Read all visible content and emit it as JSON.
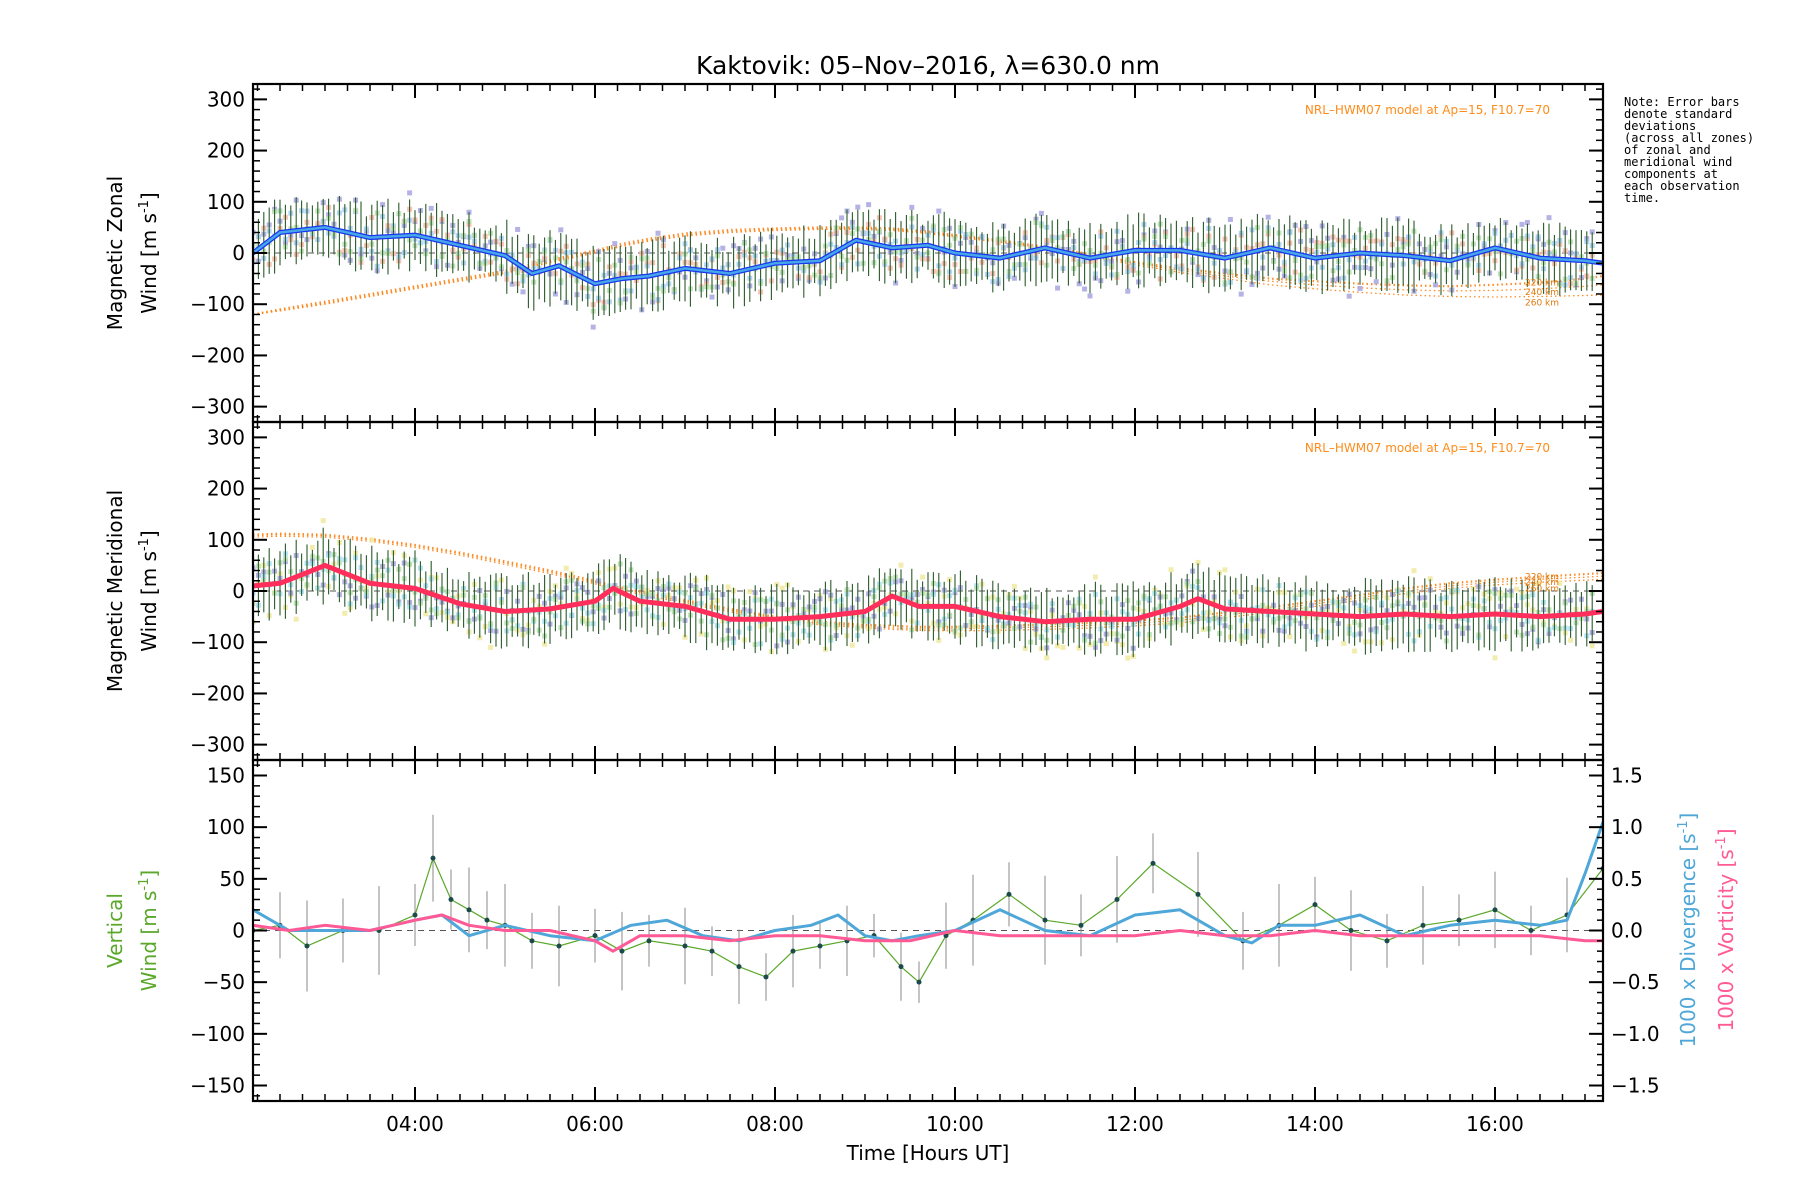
{
  "title": "Kaktovik: 05–Nov–2016, λ=630.0 nm",
  "note_lines": [
    "Note: Error bars",
    "denote standard",
    "deviations",
    "(across all zones)",
    "of zonal and",
    "meridional wind",
    "components at",
    "each observation",
    "time."
  ],
  "x_axis": {
    "label": "Time [Hours UT]",
    "range_hours": [
      2.2,
      17.2
    ],
    "ticks": [
      {
        "v": 4,
        "t": "04:00"
      },
      {
        "v": 6,
        "t": "06:00"
      },
      {
        "v": 8,
        "t": "08:00"
      },
      {
        "v": 10,
        "t": "10:00"
      },
      {
        "v": 12,
        "t": "12:00"
      },
      {
        "v": 14,
        "t": "14:00"
      },
      {
        "v": 16,
        "t": "16:00"
      }
    ]
  },
  "colors": {
    "zonal_mean": "#1a35f0",
    "zonal_avg": "#4ab4e6",
    "meridional_mean": "#ff2e5a",
    "model": "#ff7f0e",
    "vertical": "#5aa82a",
    "divergence": "#4ea7d8",
    "vorticity": "#ff5a96",
    "zonal_points": [
      "#a8a6e0",
      "#f8b8a8",
      "#a8d0f5",
      "#b8e0b0"
    ],
    "meridional_points": [
      "#f0eaa0",
      "#a8a6e0",
      "#a8e0f0",
      "#b8e0b0"
    ]
  },
  "panels": {
    "zonal": {
      "ylabel_line1": "Magnetic Zonal",
      "ylabel_line2": "Wind [m s",
      "ylabel_sup": "-1",
      "ylabel_close": "]",
      "ylim": [
        -330,
        330
      ],
      "yticks": [
        {
          "v": 300,
          "t": "300"
        },
        {
          "v": 200,
          "t": "200"
        },
        {
          "v": 100,
          "t": "100"
        },
        {
          "v": 0,
          "t": "0"
        },
        {
          "v": -100,
          "t": "−100"
        },
        {
          "v": -200,
          "t": "−200"
        },
        {
          "v": -300,
          "t": "−300"
        }
      ],
      "model_label": "NRL–HWM07 model at Ap=15, F10.7=70",
      "altitudes": [
        "220 km",
        "240 km",
        "260 km"
      ]
    },
    "meridional": {
      "ylabel_line1": "Magnetic Meridional",
      "ylabel_line2": "Wind [m s",
      "ylabel_sup": "-1",
      "ylabel_close": "]",
      "ylim": [
        -330,
        330
      ],
      "yticks": [
        {
          "v": 300,
          "t": "300"
        },
        {
          "v": 200,
          "t": "200"
        },
        {
          "v": 100,
          "t": "100"
        },
        {
          "v": 0,
          "t": "0"
        },
        {
          "v": -100,
          "t": "−100"
        },
        {
          "v": -200,
          "t": "−200"
        },
        {
          "v": -300,
          "t": "−300"
        }
      ],
      "model_label": "NRL–HWM07 model at Ap=15, F10.7=70",
      "altitudes": [
        "220 km",
        "240 km",
        "260 km"
      ]
    },
    "vertical": {
      "ylabel_line1": "Vertical",
      "ylabel_line2": "Wind [m s",
      "ylabel_sup": "-1",
      "ylabel_close": "]",
      "ylim": [
        -165,
        165
      ],
      "yticks": [
        {
          "v": 150,
          "t": "150"
        },
        {
          "v": 100,
          "t": "100"
        },
        {
          "v": 50,
          "t": "50"
        },
        {
          "v": 0,
          "t": "0"
        },
        {
          "v": -50,
          "t": "−50"
        },
        {
          "v": -100,
          "t": "−100"
        },
        {
          "v": -150,
          "t": "−150"
        }
      ],
      "right_ylim": [
        -1.65,
        1.65
      ],
      "right_yticks": [
        {
          "v": 1.5,
          "t": "1.5"
        },
        {
          "v": 1.0,
          "t": "1.0"
        },
        {
          "v": 0.5,
          "t": "0.5"
        },
        {
          "v": 0.0,
          "t": "0.0"
        },
        {
          "v": -0.5,
          "t": "−0.5"
        },
        {
          "v": -1.0,
          "t": "−1.0"
        },
        {
          "v": -1.5,
          "t": "−1.5"
        }
      ],
      "right_label_div": "1000 x Divergence [s",
      "right_label_vor": "1000 x Vorticity [s",
      "right_label_sup": "-1",
      "right_label_close": "]"
    }
  },
  "chart_data": [
    {
      "type": "line",
      "title": "Kaktovik: 05–Nov–2016, λ=630.0 nm",
      "ylabel": "Magnetic Zonal Wind [m s-1]",
      "xlabel": "",
      "ylim": [
        -330,
        330
      ],
      "x": [
        2.2,
        2.5,
        3.0,
        3.5,
        4.0,
        4.5,
        5.0,
        5.3,
        5.6,
        6.0,
        6.3,
        6.6,
        7.0,
        7.5,
        8.0,
        8.5,
        8.9,
        9.3,
        9.7,
        10.0,
        10.5,
        11.0,
        11.5,
        12.0,
        12.5,
        13.0,
        13.5,
        14.0,
        14.5,
        15.0,
        15.5,
        16.0,
        16.5,
        17.0,
        17.2
      ],
      "series": [
        {
          "values": [
            0,
            40,
            50,
            30,
            35,
            15,
            -5,
            -40,
            -25,
            -60,
            -50,
            -45,
            -30,
            -40,
            -20,
            -15,
            25,
            10,
            15,
            0,
            -10,
            10,
            -10,
            5,
            5,
            -10,
            10,
            -10,
            0,
            -5,
            -15,
            10,
            -10,
            -15,
            -20
          ]
        }
      ],
      "model_series": [
        {
          "name": "220 km",
          "values": [
            -120,
            -110,
            -95,
            -80,
            -65,
            -50,
            -35,
            -22,
            -10,
            5,
            18,
            28,
            38,
            45,
            48,
            50,
            50,
            48,
            42,
            35,
            25,
            12,
            -2,
            -18,
            -30,
            -40,
            -50,
            -55,
            -60,
            -63,
            -65,
            -62,
            -58,
            -50,
            -45
          ]
        },
        {
          "name": "240 km",
          "values": [
            -120,
            -112,
            -98,
            -83,
            -68,
            -53,
            -38,
            -25,
            -13,
            2,
            15,
            25,
            35,
            42,
            46,
            48,
            48,
            46,
            40,
            33,
            23,
            10,
            -5,
            -20,
            -34,
            -45,
            -55,
            -62,
            -68,
            -72,
            -74,
            -73,
            -70,
            -65,
            -62
          ]
        },
        {
          "name": "260 km",
          "values": [
            -120,
            -113,
            -100,
            -85,
            -70,
            -55,
            -40,
            -27,
            -15,
            0,
            13,
            23,
            33,
            40,
            44,
            46,
            46,
            44,
            38,
            31,
            21,
            8,
            -7,
            -23,
            -38,
            -50,
            -62,
            -70,
            -77,
            -82,
            -85,
            -86,
            -85,
            -83,
            -82
          ]
        }
      ]
    },
    {
      "type": "line",
      "ylabel": "Magnetic Meridional Wind [m s-1]",
      "xlabel": "",
      "ylim": [
        -330,
        330
      ],
      "x": [
        2.2,
        2.5,
        3.0,
        3.5,
        4.0,
        4.5,
        5.0,
        5.5,
        6.0,
        6.2,
        6.5,
        7.0,
        7.5,
        8.0,
        8.5,
        9.0,
        9.3,
        9.6,
        10.0,
        10.5,
        11.0,
        11.5,
        12.0,
        12.5,
        12.7,
        13.0,
        13.5,
        14.0,
        14.5,
        15.0,
        15.5,
        16.0,
        16.5,
        17.0,
        17.2
      ],
      "series": [
        {
          "values": [
            10,
            15,
            50,
            15,
            5,
            -25,
            -40,
            -35,
            -20,
            5,
            -20,
            -30,
            -55,
            -55,
            -50,
            -40,
            -10,
            -30,
            -30,
            -50,
            -60,
            -55,
            -55,
            -30,
            -15,
            -35,
            -40,
            -45,
            -50,
            -45,
            -50,
            -45,
            -50,
            -45,
            -40
          ]
        }
      ],
      "model_series": [
        {
          "name": "220 km",
          "values": [
            110,
            112,
            110,
            102,
            90,
            75,
            58,
            40,
            20,
            10,
            0,
            -18,
            -35,
            -50,
            -60,
            -66,
            -68,
            -70,
            -70,
            -68,
            -65,
            -62,
            -58,
            -52,
            -48,
            -42,
            -32,
            -20,
            -8,
            5,
            15,
            22,
            28,
            33,
            35
          ]
        },
        {
          "name": "240 km",
          "values": [
            108,
            110,
            108,
            100,
            88,
            73,
            55,
            37,
            17,
            7,
            -3,
            -21,
            -38,
            -53,
            -63,
            -69,
            -72,
            -74,
            -74,
            -72,
            -70,
            -67,
            -63,
            -57,
            -53,
            -47,
            -37,
            -25,
            -13,
            0,
            10,
            17,
            23,
            27,
            29
          ]
        },
        {
          "name": "260 km",
          "values": [
            105,
            107,
            105,
            97,
            85,
            70,
            52,
            34,
            14,
            4,
            -6,
            -24,
            -41,
            -56,
            -66,
            -72,
            -75,
            -77,
            -78,
            -77,
            -75,
            -72,
            -68,
            -62,
            -58,
            -52,
            -42,
            -30,
            -18,
            -5,
            5,
            12,
            17,
            21,
            23
          ]
        }
      ]
    },
    {
      "type": "line",
      "ylabel": "Vertical Wind [m s-1]",
      "xlabel": "Time [Hours UT]",
      "ylim": [
        -165,
        165
      ],
      "x": [
        2.2,
        2.5,
        2.8,
        3.2,
        3.6,
        4.0,
        4.2,
        4.4,
        4.6,
        4.8,
        5.0,
        5.3,
        5.6,
        6.0,
        6.3,
        6.6,
        7.0,
        7.3,
        7.6,
        7.9,
        8.2,
        8.5,
        8.8,
        9.1,
        9.4,
        9.6,
        9.9,
        10.2,
        10.6,
        11.0,
        11.4,
        11.8,
        12.2,
        12.7,
        13.2,
        13.6,
        14.0,
        14.4,
        14.8,
        15.2,
        15.6,
        16.0,
        16.4,
        16.8,
        17.2
      ],
      "series": [
        {
          "name": "Vertical",
          "values": [
            0,
            5,
            -15,
            0,
            0,
            15,
            70,
            30,
            20,
            10,
            5,
            -10,
            -15,
            -5,
            -20,
            -10,
            -15,
            -20,
            -35,
            -45,
            -20,
            -15,
            -10,
            -5,
            -35,
            -50,
            -5,
            10,
            35,
            10,
            5,
            30,
            65,
            35,
            -10,
            5,
            25,
            0,
            -10,
            5,
            10,
            20,
            0,
            15,
            60
          ]
        }
      ],
      "right_axis": {
        "label": "1000 x Divergence / 1000 x Vorticity [s-1]",
        "ylim": [
          -1.65,
          1.65
        ],
        "series": [
          {
            "name": "1000 x Divergence",
            "x": [
              2.2,
              2.6,
              3.0,
              3.5,
              4.0,
              4.3,
              4.6,
              5.0,
              5.5,
              6.0,
              6.4,
              6.8,
              7.2,
              7.6,
              8.0,
              8.4,
              8.7,
              9.0,
              9.3,
              9.6,
              10.0,
              10.5,
              11.0,
              11.5,
              12.0,
              12.5,
              13.0,
              13.3,
              13.6,
              14.0,
              14.5,
              15.0,
              15.5,
              16.0,
              16.5,
              16.8,
              17.0,
              17.2
            ],
            "values": [
              0.2,
              0.0,
              0.0,
              0.0,
              0.1,
              0.15,
              -0.05,
              0.05,
              -0.05,
              -0.1,
              0.05,
              0.1,
              -0.05,
              -0.1,
              0.0,
              0.05,
              0.15,
              -0.05,
              -0.1,
              -0.05,
              0.0,
              0.2,
              0.0,
              -0.05,
              0.15,
              0.2,
              -0.05,
              -0.12,
              0.05,
              0.05,
              0.15,
              -0.05,
              0.05,
              0.1,
              0.05,
              0.1,
              0.55,
              1.05
            ]
          },
          {
            "name": "1000 x Vorticity",
            "x": [
              2.2,
              2.6,
              3.0,
              3.5,
              4.0,
              4.3,
              4.6,
              5.0,
              5.5,
              6.0,
              6.2,
              6.5,
              7.0,
              7.5,
              8.0,
              8.5,
              9.0,
              9.5,
              10.0,
              10.5,
              11.0,
              11.5,
              12.0,
              12.5,
              13.0,
              13.5,
              14.0,
              14.5,
              15.0,
              15.5,
              16.0,
              16.5,
              17.0,
              17.2
            ],
            "values": [
              0.05,
              0.0,
              0.05,
              0.0,
              0.1,
              0.15,
              0.05,
              0.0,
              0.0,
              -0.1,
              -0.2,
              -0.05,
              -0.05,
              -0.1,
              -0.05,
              -0.05,
              -0.1,
              -0.1,
              0.0,
              -0.05,
              -0.05,
              -0.05,
              -0.05,
              0.0,
              -0.05,
              -0.05,
              0.0,
              -0.05,
              -0.05,
              -0.05,
              -0.05,
              -0.05,
              -0.1,
              -0.1
            ]
          }
        ]
      }
    }
  ]
}
